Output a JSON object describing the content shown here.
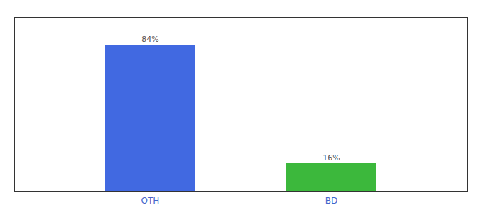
{
  "chart_data": {
    "type": "bar",
    "categories": [
      "OTH",
      "BD"
    ],
    "values": [
      84,
      16
    ],
    "colors": [
      "#4169E1",
      "#3CB83C"
    ],
    "value_labels": [
      "84%",
      "16%"
    ],
    "data_labels": true,
    "ylim": [
      0,
      100
    ],
    "tick_labels": "x"
  }
}
